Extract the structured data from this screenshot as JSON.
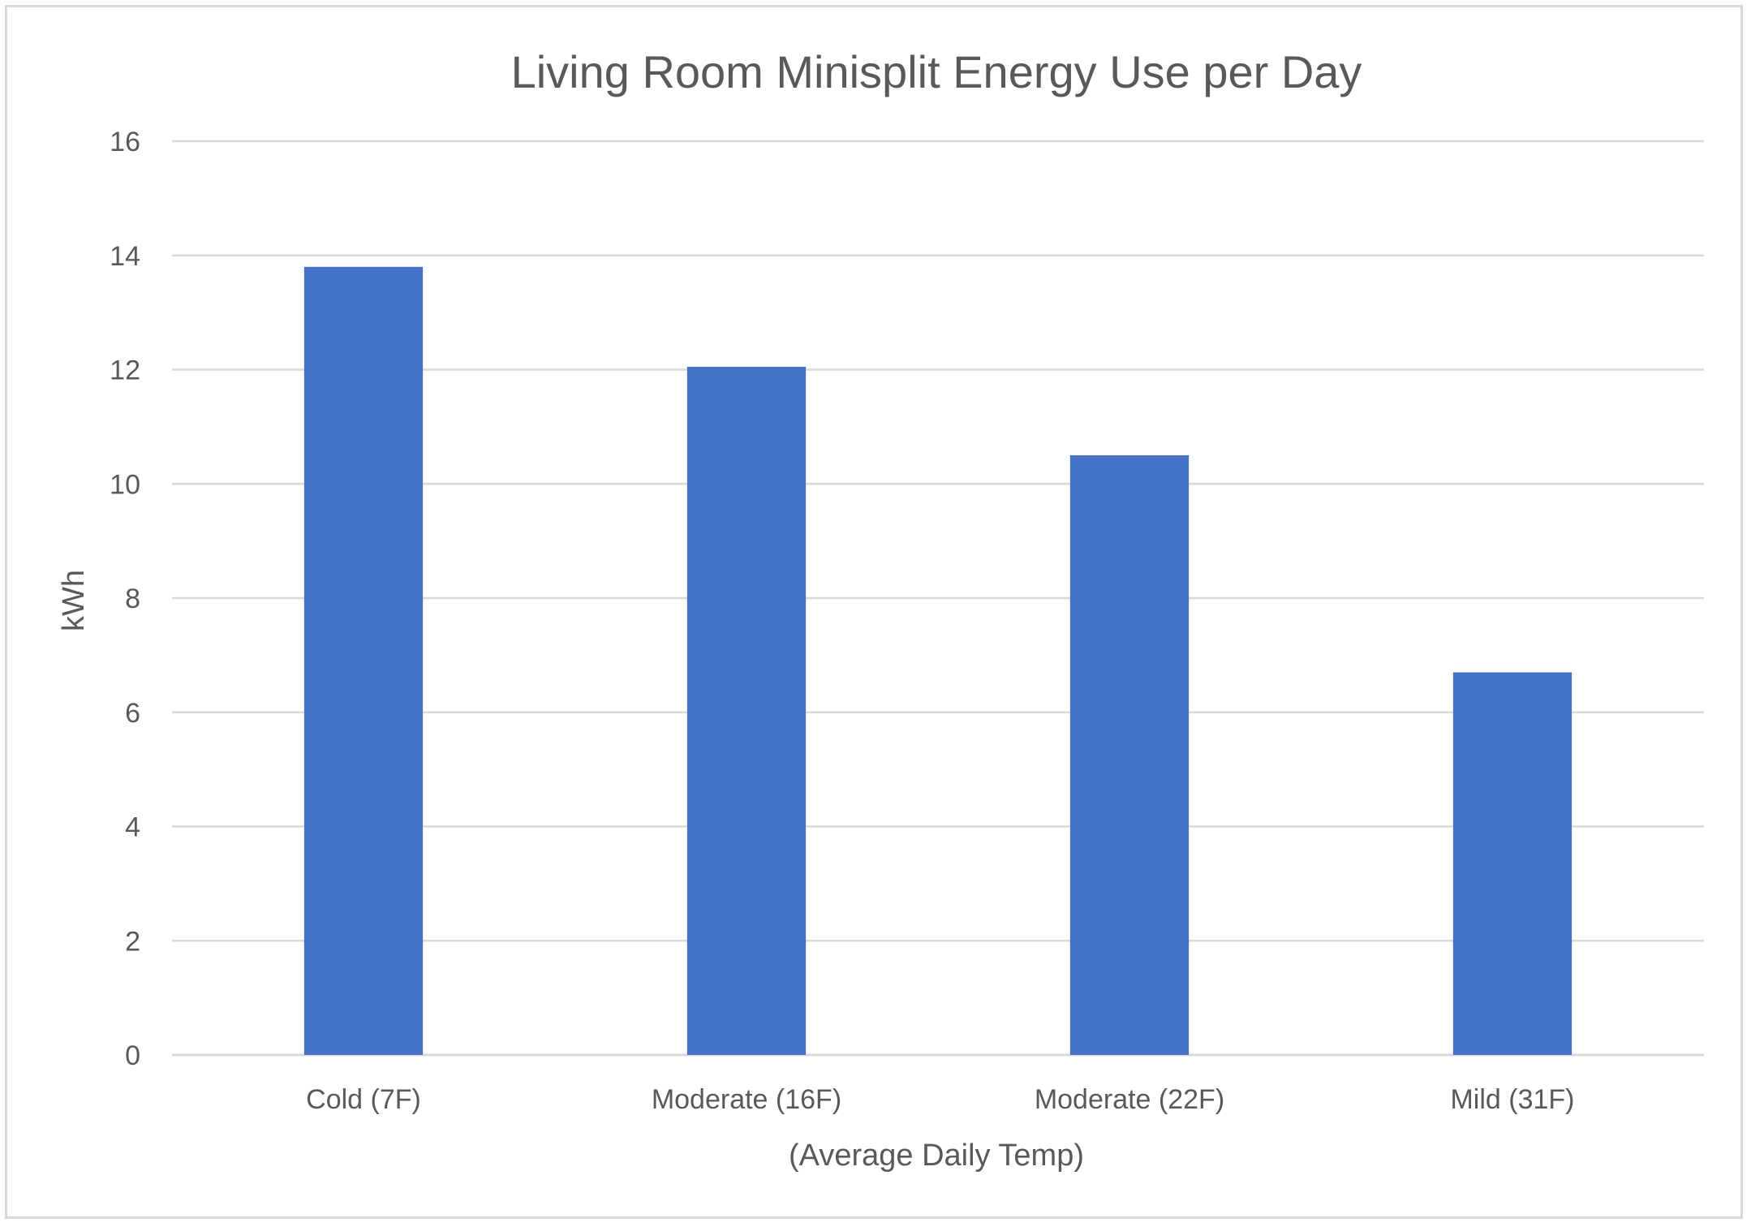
{
  "chart_data": {
    "type": "bar",
    "title": "Living Room Minisplit Energy Use per Day",
    "xlabel": "(Average Daily Temp)",
    "ylabel": "kWh",
    "categories": [
      "Cold (7F)",
      "Moderate (16F)",
      "Moderate (22F)",
      "Mild (31F)"
    ],
    "values": [
      13.8,
      12.05,
      10.5,
      6.7
    ],
    "ylim": [
      0,
      16
    ],
    "yticks": [
      0,
      2,
      4,
      6,
      8,
      10,
      12,
      14,
      16
    ],
    "grid": true,
    "legend": "none",
    "colors": {
      "bar": "#4472C4",
      "grid": "#d9d9d9",
      "text": "#595959",
      "border": "#d9d9d9"
    }
  }
}
